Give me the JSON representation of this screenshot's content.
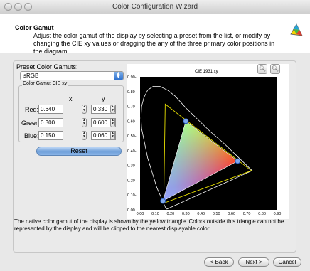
{
  "window": {
    "title": "Color Configuration Wizard"
  },
  "header": {
    "title": "Color Gamut",
    "description": "Adjust the color gamut of the display by selecting a preset from the list, or modify by changing the CIE xy values or dragging the any of the three primary color positions in the diagram."
  },
  "preset": {
    "label": "Preset Color Gamuts:",
    "selected": "sRGB"
  },
  "gamut_box": {
    "title": "Color Gamut CIE xy",
    "col_x": "x",
    "col_y": "y",
    "rows": [
      {
        "label": "Red:",
        "x": "0.640",
        "y": "0.330"
      },
      {
        "label": "Green:",
        "x": "0.300",
        "y": "0.600"
      },
      {
        "label": "Blue:",
        "x": "0.150",
        "y": "0.060"
      }
    ]
  },
  "reset_label": "Reset",
  "diagram": {
    "title": "CIE 1931 xy"
  },
  "note": "The native color gamut of the display is shown by the yellow triangle. Colors outside this triangle can not be represented by the display and will be clipped to the nearest displayable color.",
  "buttons": {
    "back": "< Back",
    "next": "Next >",
    "cancel": "Cancel"
  },
  "icons": {
    "zoom_in": "zoom-in-icon",
    "zoom_out": "zoom-out-icon"
  },
  "chart_data": {
    "type": "scatter",
    "title": "CIE 1931 xy",
    "xlim": [
      0,
      0.9
    ],
    "ylim": [
      0,
      0.9
    ],
    "x_ticks": [
      "0.00",
      "0.10",
      "0.20",
      "0.30",
      "0.40",
      "0.50",
      "0.60",
      "0.70",
      "0.80",
      "0.90"
    ],
    "y_ticks": [
      "0.00",
      "0.10-",
      "0.20-",
      "0.30-",
      "0.40-",
      "0.50-",
      "0.60-",
      "0.70-",
      "0.80-",
      "0.90-"
    ],
    "series": [
      {
        "values": [
          [
            0.64,
            0.33
          ],
          [
            0.3,
            0.6
          ],
          [
            0.15,
            0.06
          ]
        ]
      },
      {
        "values": [
          [
            0.73,
            0.265
          ],
          [
            0.165,
            0.715
          ],
          [
            0.155,
            0.045
          ]
        ]
      }
    ],
    "grid": false
  }
}
